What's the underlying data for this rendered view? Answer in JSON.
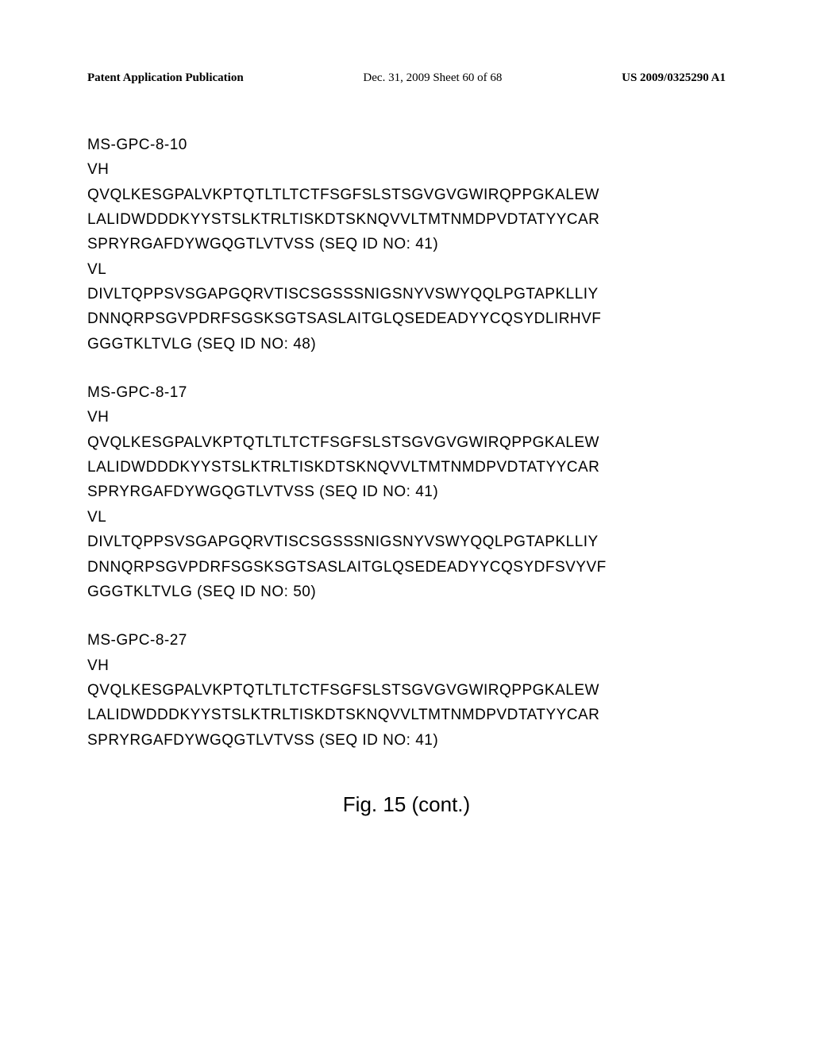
{
  "header": {
    "left": "Patent Application Publication",
    "center": "Dec. 31, 2009  Sheet 60 of 68",
    "right": "US 2009/0325290 A1"
  },
  "sections": [
    {
      "title": "MS-GPC-8-10",
      "blocks": [
        {
          "label": "VH",
          "lines": [
            "QVQLKESGPALVKPTQTLTLTCTFSGFSLSTSGVGVGWIRQPPGKALEW",
            "LALIDWDDDKYYSTSLKTRLTISKDTSKNQVVLTMTNMDPVDTATYYCAR",
            "SPRYRGAFDYWGQGTLVTVSS (SEQ ID NO: 41)"
          ]
        },
        {
          "label": "VL",
          "lines": [
            "DIVLTQPPSVSGAPGQRVTISCSGSSSNIGSNYVSWYQQLPGTAPKLLIY",
            "DNNQRPSGVPDRFSGSKSGTSASLAITGLQSEDEADYYCQSYDLIRHVF",
            "GGGTKLTVLG (SEQ ID NO: 48)"
          ]
        }
      ]
    },
    {
      "title": "MS-GPC-8-17",
      "blocks": [
        {
          "label": "VH",
          "lines": [
            "QVQLKESGPALVKPTQTLTLTCTFSGFSLSTSGVGVGWIRQPPGKALEW",
            "LALIDWDDDKYYSTSLKTRLTISKDTSKNQVVLTMTNMDPVDTATYYCAR",
            "SPRYRGAFDYWGQGTLVTVSS (SEQ ID NO: 41)"
          ]
        },
        {
          "label": "VL",
          "lines": [
            "DIVLTQPPSVSGAPGQRVTISCSGSSSNIGSNYVSWYQQLPGTAPKLLIY",
            "DNNQRPSGVPDRFSGSKSGTSASLAITGLQSEDEADYYCQSYDFSVYVF",
            "GGGTKLTVLG (SEQ ID NO: 50)"
          ]
        }
      ]
    },
    {
      "title": "MS-GPC-8-27",
      "blocks": [
        {
          "label": "VH",
          "lines": [
            "QVQLKESGPALVKPTQTLTLTCTFSGFSLSTSGVGVGWIRQPPGKALEW",
            "LALIDWDDDKYYSTSLKTRLTISKDTSKNQVVLTMTNMDPVDTATYYCAR",
            "SPRYRGAFDYWGQGTLVTVSS (SEQ ID NO: 41)"
          ]
        }
      ]
    }
  ],
  "figure_caption": "Fig. 15 (cont.)"
}
